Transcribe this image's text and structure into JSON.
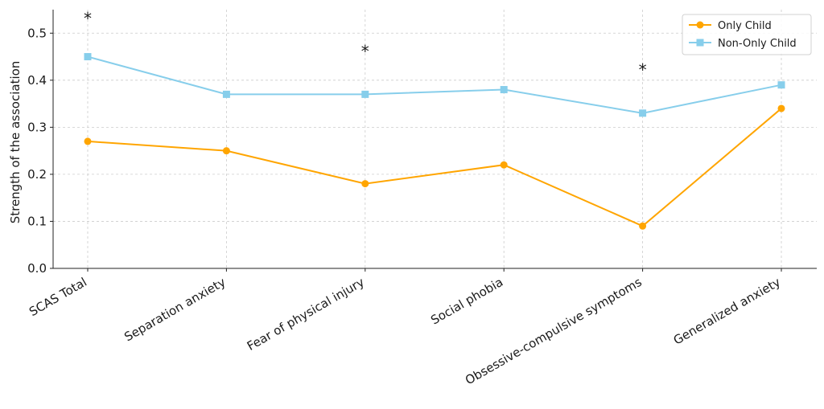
{
  "chart_data": {
    "type": "line",
    "title": "",
    "xlabel": "",
    "ylabel": "Strength of the association",
    "categories": [
      "SCAS Total",
      "Separation anxiety",
      "Fear of physical injury",
      "Social phobia",
      "Obsessive-compulsive symptoms",
      "Generalized anxiety"
    ],
    "ylim": [
      0,
      0.55
    ],
    "yticks": [
      0.0,
      0.1,
      0.2,
      0.3,
      0.4,
      0.5
    ],
    "ytick_labels": [
      "0.0",
      "0.1",
      "0.2",
      "0.3",
      "0.4",
      "0.5"
    ],
    "grid": true,
    "legend_position": "top-right",
    "series": [
      {
        "name": "Only Child",
        "color": "#FFA500",
        "marker": "circle",
        "values": [
          0.27,
          0.25,
          0.18,
          0.22,
          0.09,
          0.34
        ]
      },
      {
        "name": "Non-Only Child",
        "color": "#87CEEB",
        "marker": "square",
        "values": [
          0.45,
          0.37,
          0.37,
          0.38,
          0.33,
          0.39
        ]
      }
    ],
    "annotations": [
      {
        "text": "*",
        "category_index": 0,
        "y": 0.535
      },
      {
        "text": "*",
        "category_index": 2,
        "y": 0.465
      },
      {
        "text": "*",
        "category_index": 4,
        "y": 0.425
      }
    ]
  }
}
